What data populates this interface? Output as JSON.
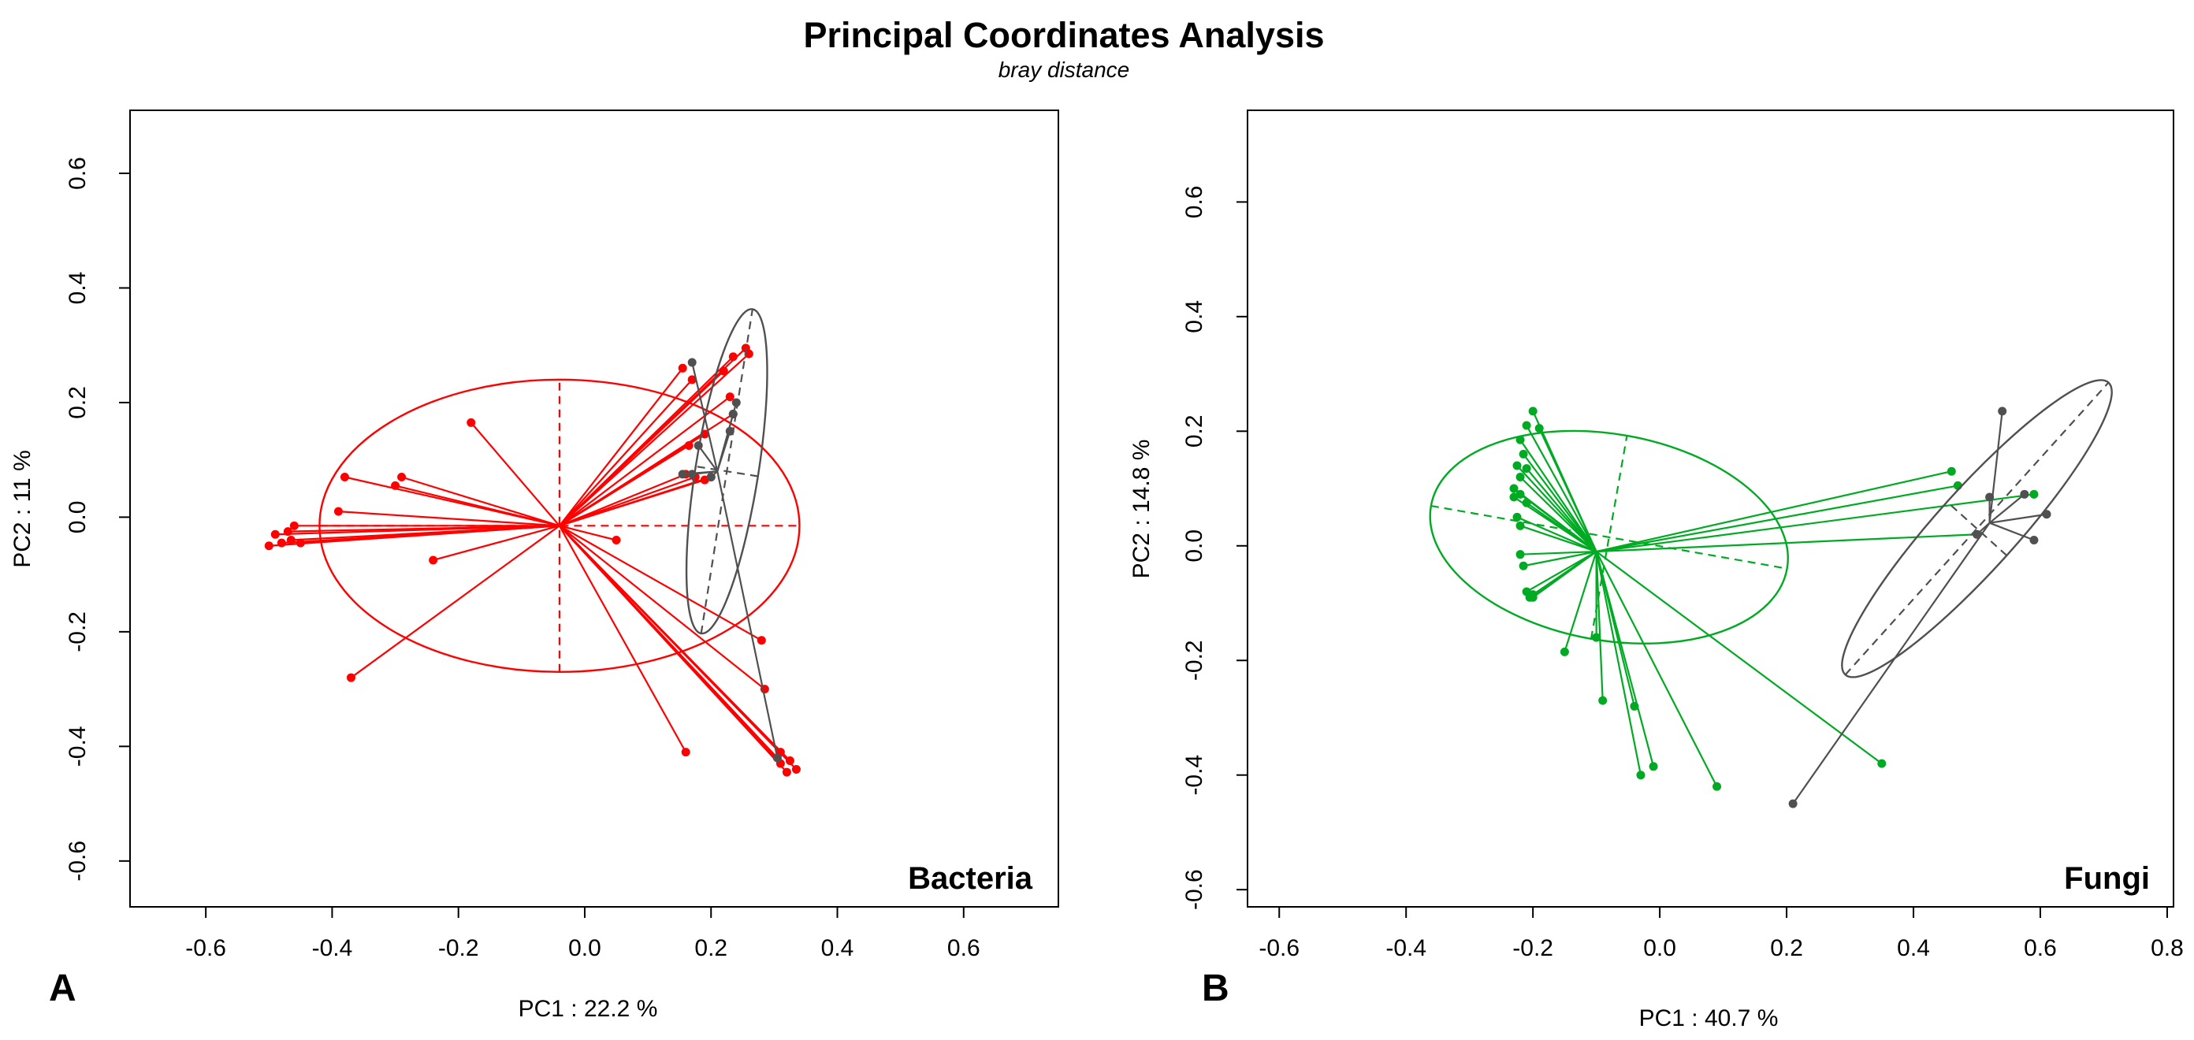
{
  "title": "Principal Coordinates Analysis",
  "subtitle": "bray distance",
  "chart_data": [
    {
      "type": "scatter",
      "panel_letter": "A",
      "panel_label": "Bacteria",
      "xlabel": "PC1 : 22.2 %",
      "ylabel": "PC2 : 11 %",
      "xlim": [
        -0.72,
        0.75
      ],
      "ylim": [
        -0.68,
        0.71
      ],
      "xticks": [
        -0.6,
        -0.4,
        -0.2,
        0.0,
        0.2,
        0.4,
        0.6
      ],
      "yticks": [
        -0.6,
        -0.4,
        -0.2,
        0.0,
        0.2,
        0.4,
        0.6
      ],
      "grid": false,
      "series": [
        {
          "color": "#ff0000",
          "centroid": [
            -0.04,
            -0.015
          ],
          "ellipse": {
            "cx": -0.04,
            "cy": -0.015,
            "semi_major": 0.38,
            "semi_minor": 0.255,
            "angle_deg": 0
          },
          "points": [
            [
              -0.5,
              -0.05
            ],
            [
              -0.49,
              -0.03
            ],
            [
              -0.48,
              -0.045
            ],
            [
              -0.47,
              -0.025
            ],
            [
              -0.46,
              -0.015
            ],
            [
              -0.465,
              -0.04
            ],
            [
              -0.45,
              -0.045
            ],
            [
              -0.38,
              0.07
            ],
            [
              -0.39,
              0.01
            ],
            [
              -0.29,
              0.07
            ],
            [
              -0.3,
              0.055
            ],
            [
              -0.18,
              0.165
            ],
            [
              -0.24,
              -0.075
            ],
            [
              -0.37,
              -0.28
            ],
            [
              0.05,
              -0.04
            ],
            [
              0.16,
              -0.41
            ],
            [
              0.155,
              0.26
            ],
            [
              0.17,
              0.24
            ],
            [
              0.235,
              0.28
            ],
            [
              0.255,
              0.295
            ],
            [
              0.26,
              0.285
            ],
            [
              0.22,
              0.255
            ],
            [
              0.23,
              0.21
            ],
            [
              0.235,
              0.18
            ],
            [
              0.19,
              0.145
            ],
            [
              0.165,
              0.125
            ],
            [
              0.16,
              0.075
            ],
            [
              0.175,
              0.07
            ],
            [
              0.19,
              0.065
            ],
            [
              0.2,
              0.07
            ],
            [
              0.28,
              -0.215
            ],
            [
              0.285,
              -0.3
            ],
            [
              0.31,
              -0.43
            ],
            [
              0.32,
              -0.445
            ],
            [
              0.325,
              -0.425
            ],
            [
              0.335,
              -0.44
            ],
            [
              0.305,
              -0.42
            ],
            [
              0.31,
              -0.41
            ]
          ]
        },
        {
          "color": "#505050",
          "centroid": [
            0.21,
            0.08
          ],
          "ellipse": {
            "cx": 0.225,
            "cy": 0.08,
            "semi_major": 0.26,
            "semi_minor": 0.055,
            "angle_deg": 81
          },
          "points": [
            [
              0.17,
              0.27
            ],
            [
              0.24,
              0.2
            ],
            [
              0.235,
              0.18
            ],
            [
              0.23,
              0.15
            ],
            [
              0.18,
              0.125
            ],
            [
              0.155,
              0.075
            ],
            [
              0.17,
              0.075
            ],
            [
              0.2,
              0.07
            ],
            [
              0.305,
              -0.42
            ]
          ]
        }
      ]
    },
    {
      "type": "scatter",
      "panel_letter": "B",
      "panel_label": "Fungi",
      "xlabel": "PC1 : 40.7 %",
      "ylabel": "PC2 : 14.8 %",
      "xlim": [
        -0.65,
        0.81
      ],
      "ylim": [
        -0.63,
        0.76
      ],
      "xticks": [
        -0.6,
        -0.4,
        -0.2,
        0.0,
        0.2,
        0.4,
        0.6,
        0.8
      ],
      "yticks": [
        -0.6,
        -0.4,
        -0.2,
        0.0,
        0.2,
        0.4,
        0.6
      ],
      "grid": false,
      "series": [
        {
          "color": "#00aa22",
          "centroid": [
            -0.1,
            -0.01
          ],
          "ellipse": {
            "cx": -0.08,
            "cy": 0.015,
            "semi_major": 0.285,
            "semi_minor": 0.18,
            "angle_deg": -10
          },
          "points": [
            [
              -0.2,
              0.235
            ],
            [
              -0.21,
              0.21
            ],
            [
              -0.19,
              0.205
            ],
            [
              -0.22,
              0.185
            ],
            [
              -0.215,
              0.16
            ],
            [
              -0.225,
              0.14
            ],
            [
              -0.21,
              0.135
            ],
            [
              -0.22,
              0.12
            ],
            [
              -0.23,
              0.1
            ],
            [
              -0.22,
              0.09
            ],
            [
              -0.23,
              0.085
            ],
            [
              -0.21,
              0.075
            ],
            [
              -0.225,
              0.05
            ],
            [
              -0.22,
              0.035
            ],
            [
              -0.22,
              -0.015
            ],
            [
              -0.215,
              -0.035
            ],
            [
              -0.21,
              -0.08
            ],
            [
              -0.205,
              -0.09
            ],
            [
              -0.2,
              -0.09
            ],
            [
              -0.2,
              -0.085
            ],
            [
              -0.15,
              -0.185
            ],
            [
              -0.1,
              -0.16
            ],
            [
              -0.09,
              -0.27
            ],
            [
              -0.04,
              -0.28
            ],
            [
              -0.03,
              -0.4
            ],
            [
              -0.01,
              -0.385
            ],
            [
              0.09,
              -0.42
            ],
            [
              0.35,
              -0.38
            ],
            [
              0.46,
              0.13
            ],
            [
              0.47,
              0.105
            ],
            [
              0.59,
              0.09
            ],
            [
              0.5,
              0.02
            ]
          ]
        },
        {
          "color": "#505050",
          "centroid": [
            0.52,
            0.04
          ],
          "ellipse": {
            "cx": 0.5,
            "cy": 0.03,
            "semi_major": 0.31,
            "semi_minor": 0.07,
            "angle_deg": 48
          },
          "points": [
            [
              0.54,
              0.235
            ],
            [
              0.52,
              0.085
            ],
            [
              0.575,
              0.09
            ],
            [
              0.61,
              0.055
            ],
            [
              0.59,
              0.01
            ],
            [
              0.5,
              0.02
            ],
            [
              0.21,
              -0.45
            ]
          ]
        }
      ]
    }
  ]
}
